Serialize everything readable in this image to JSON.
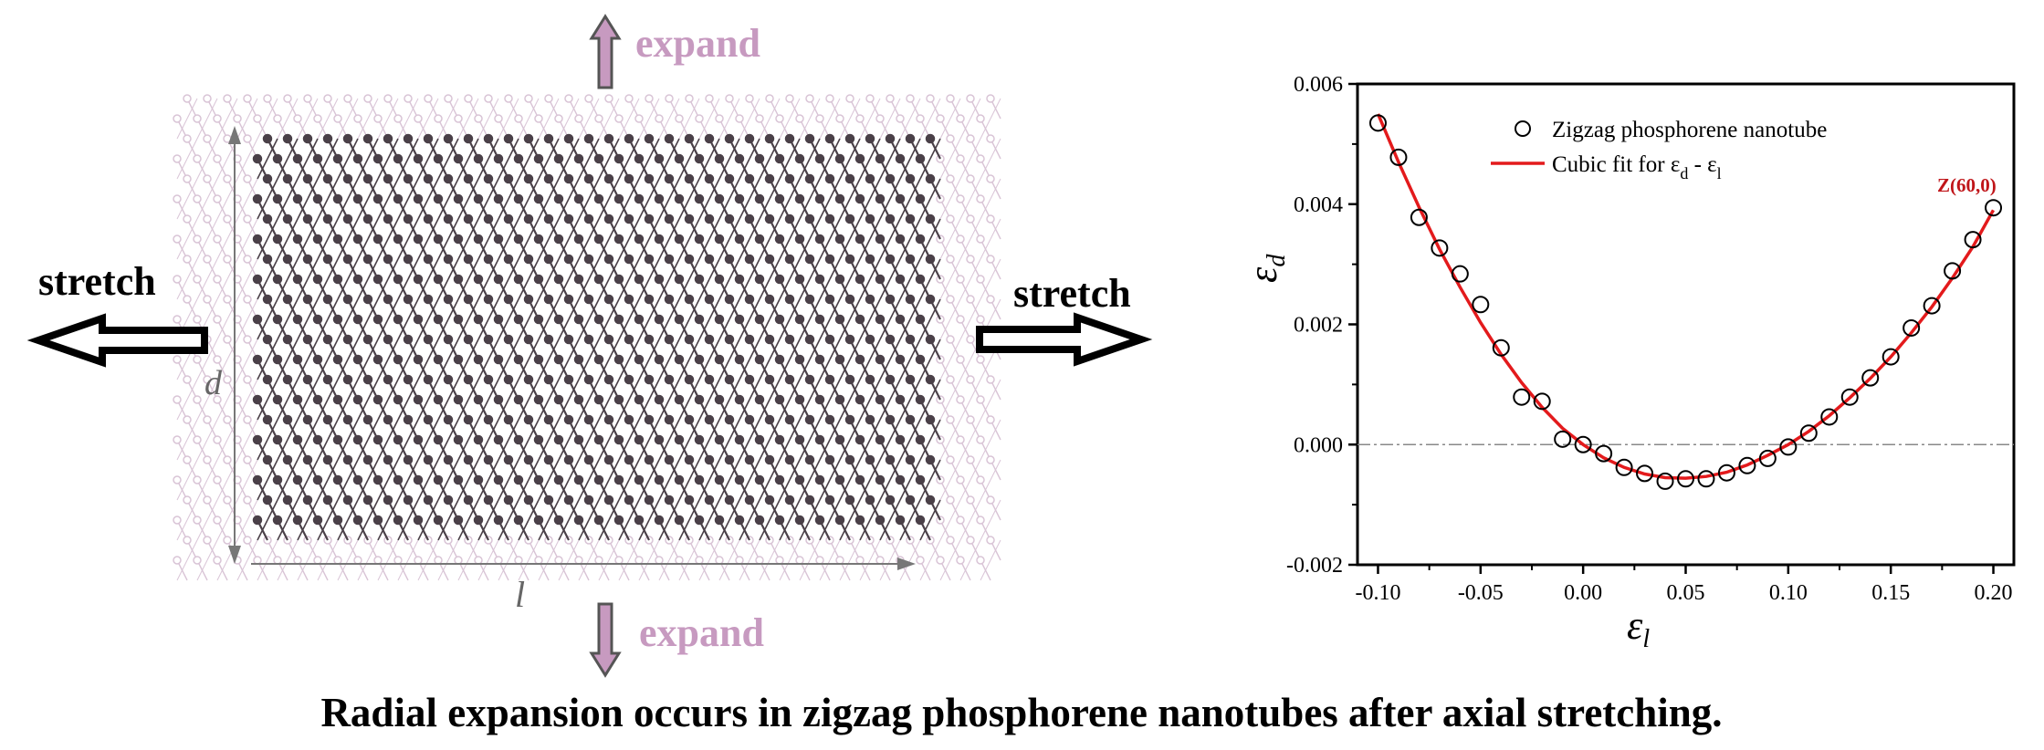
{
  "schematic": {
    "expand_top": "expand",
    "expand_bottom": "expand",
    "stretch_left": "stretch",
    "stretch_right": "stretch",
    "dim_d": "d",
    "dim_l": "l",
    "expand_color": "#c79ac0",
    "lattice_dark": "#4a4048",
    "lattice_light": "#d9c4d6"
  },
  "caption": "Radial expansion occurs in zigzag phosphorene nanotubes after axial stretching.",
  "chart_data": {
    "type": "scatter",
    "xlim": [
      -0.11,
      0.21
    ],
    "ylim": [
      -0.002,
      0.006
    ],
    "xticks": [
      "-0.10",
      "-0.05",
      "0.00",
      "0.05",
      "0.10",
      "0.15",
      "0.20"
    ],
    "xtick_values": [
      -0.1,
      -0.05,
      0.0,
      0.05,
      0.1,
      0.15,
      0.2
    ],
    "yticks": [
      "-0.002",
      "0.000",
      "0.002",
      "0.004",
      "0.006"
    ],
    "ytick_values": [
      -0.002,
      0.0,
      0.002,
      0.004,
      0.006
    ],
    "xlabel_main": "ε",
    "xlabel_sub": "l",
    "ylabel_main": "ε",
    "ylabel_sub": "d",
    "reference_line_y": 0.0,
    "grid": false,
    "legend_position": "top-center",
    "legend": {
      "scatter_label": "Zigzag phosphorene nanotube",
      "fit_label_pre": "Cubic fit for ε",
      "fit_label_sub1": "d",
      "fit_label_mid": " - ε",
      "fit_label_sub2": "l"
    },
    "annotation": "Z(60,0)",
    "series": [
      {
        "name": "Zigzag phosphorene nanotube",
        "x": [
          -0.1,
          -0.09,
          -0.08,
          -0.07,
          -0.06,
          -0.05,
          -0.04,
          -0.03,
          -0.02,
          -0.01,
          0.0,
          0.01,
          0.02,
          0.03,
          0.04,
          0.05,
          0.06,
          0.07,
          0.08,
          0.09,
          0.1,
          0.11,
          0.12,
          0.13,
          0.14,
          0.15,
          0.16,
          0.17,
          0.18,
          0.19,
          0.2
        ],
        "y": [
          0.00535,
          0.00478,
          0.00378,
          0.00327,
          0.00284,
          0.00233,
          0.00161,
          0.00079,
          0.00072,
          9e-05,
          0.0,
          -0.00015,
          -0.00038,
          -0.00048,
          -0.00061,
          -0.00057,
          -0.00057,
          -0.00047,
          -0.00035,
          -0.00023,
          -4e-05,
          0.00019,
          0.00046,
          0.00079,
          0.00111,
          0.00146,
          0.00194,
          0.00231,
          0.00289,
          0.00341,
          0.00394
        ]
      }
    ],
    "fit": {
      "name": "Cubic fit for εd - εl",
      "color": "#e31a1c",
      "x": [
        -0.1,
        -0.09,
        -0.08,
        -0.07,
        -0.06,
        -0.05,
        -0.04,
        -0.03,
        -0.02,
        -0.01,
        0.0,
        0.01,
        0.02,
        0.03,
        0.04,
        0.05,
        0.06,
        0.07,
        0.08,
        0.09,
        0.1,
        0.11,
        0.12,
        0.13,
        0.14,
        0.15,
        0.16,
        0.17,
        0.18,
        0.19,
        0.2
      ],
      "y": [
        0.0055,
        0.0047,
        0.00395,
        0.00325,
        0.00262,
        0.00203,
        0.0015,
        0.00103,
        0.00062,
        0.00027,
        0.0,
        -0.00022,
        -0.00038,
        -0.00049,
        -0.00055,
        -0.00056,
        -0.00053,
        -0.00046,
        -0.00034,
        -0.00018,
        0.0,
        0.00022,
        0.00048,
        0.00078,
        0.0011,
        0.00146,
        0.00186,
        0.00229,
        0.00277,
        0.00329,
        0.0039
      ]
    }
  }
}
